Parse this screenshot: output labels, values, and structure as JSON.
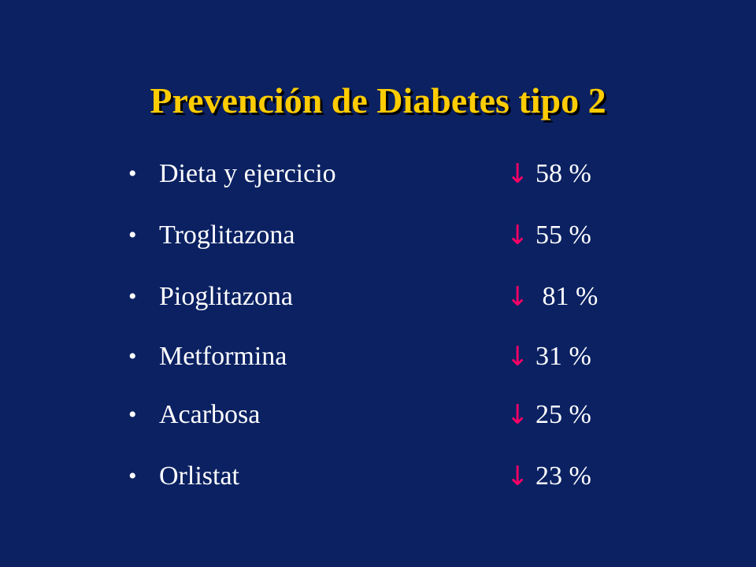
{
  "slide": {
    "title": "Prevención de Diabetes tipo 2",
    "bullet_glyph": "•",
    "arrow_glyph": "↓",
    "arrow_icon": "down-arrow-icon",
    "colors": {
      "background": "#0b2162",
      "title": "#ffcc00",
      "text": "#ffffff",
      "arrow": "#ff0066"
    },
    "items": [
      {
        "label": "Dieta y ejercicio",
        "value": "58 %"
      },
      {
        "label": "Troglitazona",
        "value": "55 %"
      },
      {
        "label": "Pioglitazona",
        "value": " 81 %"
      },
      {
        "label": "Metformina",
        "value": "31 %"
      },
      {
        "label": "Acarbosa",
        "value": "25 %"
      },
      {
        "label": "Orlistat",
        "value": "23 %"
      }
    ]
  }
}
